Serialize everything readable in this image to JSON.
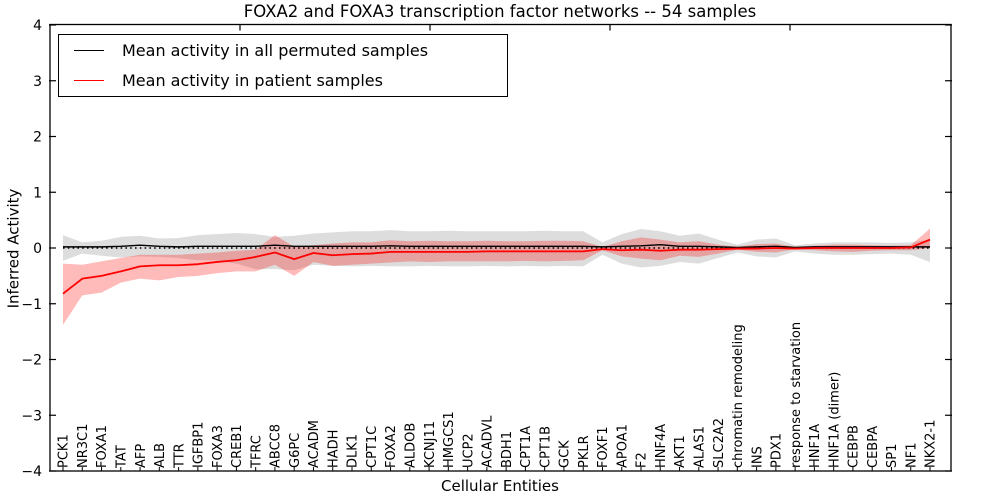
{
  "chart_data": {
    "type": "line",
    "title": "FOXA2 and FOXA3 transcription factor networks -- 54 samples",
    "xlabel": "Cellular Entities",
    "ylabel": "Inferred Activity",
    "ylim": [
      -4,
      4
    ],
    "yticks": [
      4,
      3,
      2,
      1,
      0,
      -1,
      -2,
      -3,
      -4
    ],
    "grid": false,
    "zero_reference_line": "dotted",
    "legend_position": "upper left",
    "legend": [
      {
        "label": "Mean activity in all permuted samples",
        "color": "#000000"
      },
      {
        "label": "Mean activity in patient samples",
        "color": "#ff0000"
      }
    ],
    "categories": [
      "PCK1",
      "NR3C1",
      "FOXA1",
      "TAT",
      "AFP",
      "ALB",
      "TTR",
      "IGFBP1",
      "FOXA3",
      "CREB1",
      "TFRC",
      "ABCC8",
      "G6PC",
      "ACADM",
      "HADH",
      "DLK1",
      "CPT1C",
      "FOXA2",
      "ALDOB",
      "KCNJ11",
      "HMGCS1",
      "UCP2",
      "ACADVL",
      "BDH1",
      "CPT1A",
      "CPT1B",
      "GCK",
      "PKLR",
      "FOXF1",
      "APOA1",
      "F2",
      "HNF4A",
      "AKT1",
      "ALAS1",
      "SLC2A2",
      "chromatin remodeling",
      "INS",
      "PDX1",
      "response to starvation",
      "HNF1A",
      "HNF1A (dimer)",
      "CEBPB",
      "CEBPA",
      "SP1",
      "NF1",
      "NKX2-1"
    ],
    "series": [
      {
        "name": "Mean activity in all permuted samples",
        "color": "#000000",
        "width": 1.4,
        "values": [
          0.02,
          0.02,
          0.02,
          0.03,
          0.05,
          0.03,
          0.02,
          0.03,
          0.03,
          0.03,
          0.03,
          0.05,
          0.03,
          0.03,
          0.03,
          0.03,
          0.03,
          0.04,
          0.03,
          0.03,
          0.03,
          0.03,
          0.03,
          0.03,
          0.03,
          0.03,
          0.03,
          0.03,
          0.02,
          0.03,
          0.04,
          0.06,
          0.03,
          0.03,
          0.02,
          0.01,
          0.02,
          0.03,
          0.01,
          0.02,
          0.02,
          0.02,
          0.02,
          0.02,
          0.02,
          0.02
        ]
      },
      {
        "name": "Mean activity in patient samples",
        "color": "#ff0000",
        "width": 1.8,
        "values": [
          -0.82,
          -0.55,
          -0.5,
          -0.42,
          -0.33,
          -0.31,
          -0.31,
          -0.29,
          -0.25,
          -0.22,
          -0.16,
          -0.08,
          -0.2,
          -0.09,
          -0.13,
          -0.11,
          -0.1,
          -0.07,
          -0.07,
          -0.07,
          -0.07,
          -0.07,
          -0.06,
          -0.06,
          -0.06,
          -0.06,
          -0.06,
          -0.06,
          -0.02,
          -0.04,
          -0.03,
          -0.05,
          -0.03,
          -0.03,
          -0.02,
          -0.01,
          -0.01,
          0.0,
          -0.01,
          0.0,
          0.0,
          0.0,
          0.0,
          0.0,
          0.01,
          0.15
        ]
      }
    ],
    "bands": [
      {
        "name": "permuted-confidence-band",
        "fill": "#808080",
        "opacity": 0.27,
        "upper": [
          0.23,
          0.1,
          0.13,
          0.2,
          0.22,
          0.17,
          0.18,
          0.23,
          0.25,
          0.27,
          0.25,
          0.2,
          0.22,
          0.26,
          0.28,
          0.3,
          0.3,
          0.32,
          0.3,
          0.3,
          0.31,
          0.3,
          0.3,
          0.3,
          0.3,
          0.31,
          0.3,
          0.3,
          0.1,
          0.25,
          0.34,
          0.3,
          0.22,
          0.26,
          0.15,
          0.06,
          0.15,
          0.17,
          0.05,
          0.08,
          0.1,
          0.1,
          0.1,
          0.09,
          0.1,
          0.15
        ],
        "lower": [
          -0.23,
          -0.1,
          -0.14,
          -0.17,
          -0.15,
          -0.16,
          -0.18,
          -0.22,
          -0.22,
          -0.28,
          -0.38,
          -0.38,
          -0.4,
          -0.3,
          -0.32,
          -0.33,
          -0.32,
          -0.33,
          -0.33,
          -0.32,
          -0.33,
          -0.33,
          -0.32,
          -0.33,
          -0.32,
          -0.33,
          -0.32,
          -0.33,
          -0.12,
          -0.28,
          -0.35,
          -0.32,
          -0.25,
          -0.28,
          -0.18,
          -0.08,
          -0.15,
          -0.17,
          -0.06,
          -0.1,
          -0.12,
          -0.12,
          -0.11,
          -0.1,
          -0.12,
          -0.25
        ]
      },
      {
        "name": "patient-confidence-band",
        "fill": "#ff0000",
        "opacity": 0.27,
        "upper": [
          -0.28,
          -0.3,
          -0.24,
          -0.18,
          -0.12,
          -0.12,
          -0.12,
          -0.1,
          -0.08,
          -0.05,
          -0.03,
          0.23,
          0.02,
          0.05,
          0.08,
          0.1,
          0.1,
          0.14,
          0.12,
          0.13,
          0.12,
          0.12,
          0.13,
          0.12,
          0.12,
          0.13,
          0.13,
          0.12,
          0.02,
          0.12,
          0.19,
          0.15,
          0.1,
          0.12,
          0.06,
          0.02,
          0.07,
          0.08,
          0.02,
          0.04,
          0.06,
          0.06,
          0.05,
          0.04,
          0.05,
          0.35
        ],
        "lower": [
          -1.38,
          -0.85,
          -0.8,
          -0.62,
          -0.55,
          -0.58,
          -0.52,
          -0.5,
          -0.45,
          -0.42,
          -0.42,
          -0.3,
          -0.5,
          -0.25,
          -0.32,
          -0.3,
          -0.28,
          -0.26,
          -0.24,
          -0.25,
          -0.24,
          -0.24,
          -0.24,
          -0.24,
          -0.23,
          -0.24,
          -0.23,
          -0.22,
          -0.04,
          -0.15,
          -0.19,
          -0.22,
          -0.14,
          -0.16,
          -0.1,
          -0.03,
          -0.07,
          -0.08,
          -0.02,
          -0.04,
          -0.06,
          -0.07,
          -0.05,
          -0.04,
          -0.04,
          0.0
        ]
      }
    ]
  }
}
